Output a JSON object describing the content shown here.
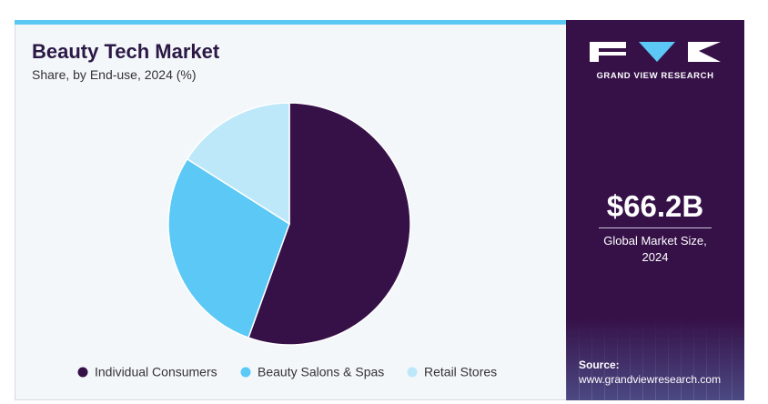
{
  "chart_data": {
    "type": "pie",
    "title": "Beauty Tech Market",
    "subtitle": "Share, by End-use, 2024 (%)",
    "categories": [
      "Individual Consumers",
      "Beauty Salons & Spas",
      "Retail Stores"
    ],
    "values": [
      55.5,
      28.5,
      16
    ],
    "colors": [
      "#361148",
      "#5bc8f5",
      "#bde8f9"
    ],
    "legend": "bottom"
  },
  "sidebar": {
    "brand": "GRAND VIEW RESEARCH",
    "market_size": "$66.2B",
    "market_size_label": "Global Market Size, 2024",
    "source_label": "Source:",
    "source_url": "www.grandviewresearch.com"
  }
}
